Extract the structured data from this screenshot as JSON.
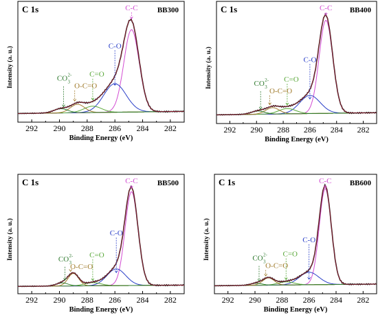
{
  "colors": {
    "envelope": "#2b2b2b",
    "fit": "#8b1a2b",
    "cc": "#d24bd2",
    "co": "#2a3fc8",
    "coo": "#a07a2a",
    "ceo": "#5aa83a",
    "co3": "#2f7a2f",
    "baseline": "#8a8f2a"
  },
  "chart_data": [
    {
      "type": "line",
      "panel_label": "C 1s",
      "sample": "BB300",
      "xlabel": "Binding Energy (eV)",
      "ylabel": "Intensity (a. u.)",
      "xlim": [
        293,
        281
      ],
      "xticks": [
        292,
        290,
        288,
        286,
        284,
        282
      ],
      "annotations": {
        "cc": "C-C",
        "co": "C-O",
        "ceo": "C=O",
        "coo": "O-C=O",
        "co3": "CO",
        "co3_sup": "2-",
        "co3_sub": "3"
      },
      "baseline": 0.05,
      "peaks": [
        {
          "name": "C-C",
          "center": 284.8,
          "height": 0.78,
          "fwhm": 1.3
        },
        {
          "name": "C-O",
          "center": 286.0,
          "height": 0.27,
          "fwhm": 1.9
        },
        {
          "name": "C=O",
          "center": 287.6,
          "height": 0.06,
          "fwhm": 1.5
        },
        {
          "name": "O-C=O",
          "center": 288.7,
          "height": 0.08,
          "fwhm": 1.2
        },
        {
          "name": "CO3",
          "center": 289.9,
          "height": 0.04,
          "fwhm": 1.2
        }
      ]
    },
    {
      "type": "line",
      "panel_label": "C 1s",
      "sample": "BB400",
      "xlabel": "Binding Energy (eV)",
      "ylabel": "Intensity (a. u.)",
      "xlim": [
        293,
        281
      ],
      "xticks": [
        292,
        290,
        288,
        286,
        284,
        282
      ],
      "annotations": {
        "cc": "C-C",
        "co": "C-O",
        "ceo": "C=O",
        "coo": "O-C=O",
        "co3": "CO",
        "co3_sup": "2-",
        "co3_sub": "3"
      },
      "baseline": 0.05,
      "peaks": [
        {
          "name": "C-C",
          "center": 284.8,
          "height": 0.87,
          "fwhm": 1.2
        },
        {
          "name": "C-O",
          "center": 286.0,
          "height": 0.17,
          "fwhm": 1.8
        },
        {
          "name": "C=O",
          "center": 287.7,
          "height": 0.05,
          "fwhm": 1.5
        },
        {
          "name": "O-C=O",
          "center": 288.8,
          "height": 0.06,
          "fwhm": 1.2
        },
        {
          "name": "CO3",
          "center": 289.9,
          "height": 0.03,
          "fwhm": 1.2
        }
      ]
    },
    {
      "type": "line",
      "panel_label": "C 1s",
      "sample": "BB500",
      "xlabel": "Binding Energy (eV)",
      "ylabel": "Intensity (a. u.)",
      "xlim": [
        293,
        281
      ],
      "xticks": [
        292,
        290,
        288,
        286,
        284,
        282
      ],
      "annotations": {
        "cc": "C-C",
        "co": "C-O",
        "ceo": "C=O",
        "coo": "O-C=O",
        "co3": "CO",
        "co3_sup": "2-",
        "co3_sub": "3"
      },
      "baseline": 0.03,
      "peaks": [
        {
          "name": "C-C",
          "center": 284.8,
          "height": 0.9,
          "fwhm": 1.1
        },
        {
          "name": "C-O",
          "center": 285.9,
          "height": 0.16,
          "fwhm": 1.6
        },
        {
          "name": "C=O",
          "center": 287.6,
          "height": 0.03,
          "fwhm": 1.4
        },
        {
          "name": "O-C=O",
          "center": 289.0,
          "height": 0.12,
          "fwhm": 0.9
        },
        {
          "name": "CO3",
          "center": 289.8,
          "height": 0.03,
          "fwhm": 1.0
        }
      ]
    },
    {
      "type": "line",
      "panel_label": "C 1s",
      "sample": "BB600",
      "xlabel": "Binding Energy (eV)",
      "ylabel": "Intensity (a. u.)",
      "xlim": [
        293,
        281
      ],
      "xticks": [
        292,
        290,
        288,
        286,
        284,
        282
      ],
      "annotations": {
        "cc": "C-C",
        "co": "C-O",
        "ceo": "C=O",
        "coo": "O-C=O",
        "co3": "CO",
        "co3_sup": "2-",
        "co3_sub": "3"
      },
      "baseline": 0.04,
      "peaks": [
        {
          "name": "C-C",
          "center": 284.8,
          "height": 0.92,
          "fwhm": 1.05
        },
        {
          "name": "C-O",
          "center": 286.0,
          "height": 0.12,
          "fwhm": 1.7
        },
        {
          "name": "C=O",
          "center": 287.7,
          "height": 0.03,
          "fwhm": 1.4
        },
        {
          "name": "O-C=O",
          "center": 289.0,
          "height": 0.07,
          "fwhm": 1.0
        },
        {
          "name": "CO3",
          "center": 289.9,
          "height": 0.02,
          "fwhm": 1.0
        }
      ]
    }
  ]
}
